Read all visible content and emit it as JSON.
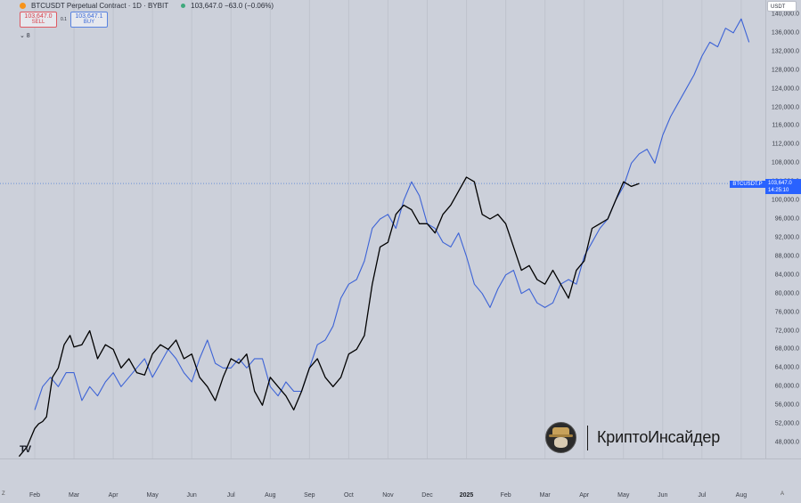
{
  "header": {
    "symbol": "BTCUSDT Perpetual Contract · 1D · BYBIT",
    "price_info": "103,647.0  −63.0 (−0.06%)"
  },
  "trade": {
    "sell_price": "103,647.0",
    "sell_label": "SELL",
    "spread": "0.1",
    "buy_price": "103,647.1",
    "buy_label": "BUY"
  },
  "collapse_label": "⌄ 8",
  "currency": "USDT",
  "price_tag": {
    "symbol": "BTCUSDT.P",
    "price": "103,647.0",
    "countdown": "14:25:10"
  },
  "watermark": {
    "text": "КриптоИнсайдер"
  },
  "logo": {
    "text": "TV"
  },
  "nav": {
    "left": "Z",
    "right": "A"
  },
  "colors": {
    "black_series": "#000000",
    "blue_series": "#3d63d6",
    "price_line": "#6a8fd8",
    "accent": "#2962ff"
  },
  "chart_data": {
    "type": "line",
    "title": "BTCUSDT Perpetual Contract · 1D · BYBIT",
    "xlabel": "",
    "ylabel": "",
    "ylim": [
      44000,
      141000
    ],
    "yticks": [
      "140,000.0",
      "136,000.0",
      "132,000.0",
      "128,000.0",
      "124,000.0",
      "120,000.0",
      "116,000.0",
      "112,000.0",
      "108,000.0",
      "104,000.0",
      "100,000.0",
      "96,000.0",
      "92,000.0",
      "88,000.0",
      "84,000.0",
      "80,000.0",
      "76,000.0",
      "72,000.0",
      "68,000.0",
      "64,000.0",
      "60,000.0",
      "56,000.0",
      "52,000.0",
      "48,000.0"
    ],
    "x_tick_labels": [
      "Feb",
      "Mar",
      "Apr",
      "May",
      "Jun",
      "Jul",
      "Aug",
      "Sep",
      "Oct",
      "Nov",
      "Dec",
      "2025",
      "Feb",
      "Mar",
      "Apr",
      "May",
      "Jun",
      "Jul",
      "Aug"
    ],
    "x_tick_months": [
      1,
      2,
      3,
      4,
      5,
      6,
      7,
      8,
      9,
      10,
      11,
      12,
      13,
      14,
      15,
      16,
      17,
      18,
      19
    ],
    "current_price": 103647,
    "series": [
      {
        "color": "#000000",
        "x": [
          0.6,
          0.8,
          1.0,
          1.1,
          1.2,
          1.3,
          1.45,
          1.6,
          1.75,
          1.9,
          2.0,
          2.2,
          2.4,
          2.6,
          2.8,
          3.0,
          3.2,
          3.4,
          3.6,
          3.8,
          4.0,
          4.2,
          4.4,
          4.6,
          4.8,
          5.0,
          5.2,
          5.4,
          5.6,
          5.8,
          6.0,
          6.2,
          6.4,
          6.6,
          6.8,
          7.0,
          7.2,
          7.4,
          7.6,
          7.8,
          8.0,
          8.2,
          8.4,
          8.6,
          8.8,
          9.0,
          9.2,
          9.4,
          9.6,
          9.8,
          10.0,
          10.2,
          10.4,
          10.6,
          10.8,
          11.0,
          11.2,
          11.4,
          11.6,
          11.8,
          12.0,
          12.2,
          12.4,
          12.6,
          12.8,
          13.0,
          13.2,
          13.4,
          13.6,
          13.8,
          14.0,
          14.2,
          14.4,
          14.6,
          14.8,
          15.0,
          15.2,
          15.4,
          15.6,
          15.8,
          16.0,
          16.2,
          16.4
        ],
        "y": [
          45000,
          47000,
          51000,
          52000,
          52500,
          53500,
          62000,
          64000,
          69000,
          71000,
          68500,
          69000,
          72000,
          66000,
          69000,
          68000,
          64000,
          66000,
          63000,
          62500,
          67000,
          69000,
          68000,
          70000,
          66000,
          67000,
          62000,
          60000,
          57000,
          62000,
          66000,
          65000,
          67000,
          59000,
          56000,
          62000,
          60000,
          58000,
          55000,
          59000,
          64000,
          66000,
          62000,
          60000,
          62000,
          67000,
          68000,
          71000,
          82000,
          90000,
          91000,
          97000,
          99000,
          98000,
          95000,
          95000,
          93000,
          97000,
          99000,
          102000,
          105000,
          104000,
          97000,
          96000,
          97000,
          95000,
          90000,
          85000,
          86000,
          83000,
          82000,
          85000,
          82000,
          79000,
          85000,
          87000,
          94000,
          95000,
          96000,
          100000,
          104000,
          103000,
          103647
        ]
      },
      {
        "color": "#3d63d6",
        "x": [
          1.0,
          1.2,
          1.4,
          1.6,
          1.8,
          2.0,
          2.2,
          2.4,
          2.6,
          2.8,
          3.0,
          3.2,
          3.4,
          3.6,
          3.8,
          4.0,
          4.2,
          4.4,
          4.6,
          4.8,
          5.0,
          5.2,
          5.4,
          5.6,
          5.8,
          6.0,
          6.2,
          6.4,
          6.6,
          6.8,
          7.0,
          7.2,
          7.4,
          7.6,
          7.8,
          8.0,
          8.2,
          8.4,
          8.6,
          8.8,
          9.0,
          9.2,
          9.4,
          9.6,
          9.8,
          10.0,
          10.2,
          10.4,
          10.6,
          10.8,
          11.0,
          11.2,
          11.4,
          11.6,
          11.8,
          12.0,
          12.2,
          12.4,
          12.6,
          12.8,
          13.0,
          13.2,
          13.4,
          13.6,
          13.8,
          14.0,
          14.2,
          14.4,
          14.6,
          14.8,
          15.0,
          15.2,
          15.4,
          15.6,
          15.8,
          16.0,
          16.2,
          16.4,
          16.6,
          16.8,
          17.0,
          17.2,
          17.4,
          17.6,
          17.8,
          18.0,
          18.2,
          18.4,
          18.6,
          18.8,
          19.0,
          19.2
        ],
        "y": [
          55000,
          60000,
          62000,
          60000,
          63000,
          63000,
          57000,
          60000,
          58000,
          61000,
          63000,
          60000,
          62000,
          64000,
          66000,
          62000,
          65000,
          68000,
          66000,
          63000,
          61000,
          66000,
          70000,
          65000,
          64000,
          64000,
          66000,
          64000,
          66000,
          66000,
          60000,
          58000,
          61000,
          59000,
          59000,
          64000,
          69000,
          70000,
          73000,
          79000,
          82000,
          83000,
          87000,
          94000,
          96000,
          97000,
          94000,
          100000,
          104000,
          101000,
          95000,
          94000,
          91000,
          90000,
          93000,
          88000,
          82000,
          80000,
          77000,
          81000,
          84000,
          85000,
          80000,
          81000,
          78000,
          77000,
          78000,
          82000,
          83000,
          82000,
          88000,
          91000,
          94000,
          96000,
          100000,
          103000,
          108000,
          110000,
          111000,
          108000,
          114000,
          118000,
          121000,
          124000,
          127000,
          131000,
          134000,
          133000,
          137000,
          136000,
          139000,
          134000
        ]
      }
    ]
  }
}
